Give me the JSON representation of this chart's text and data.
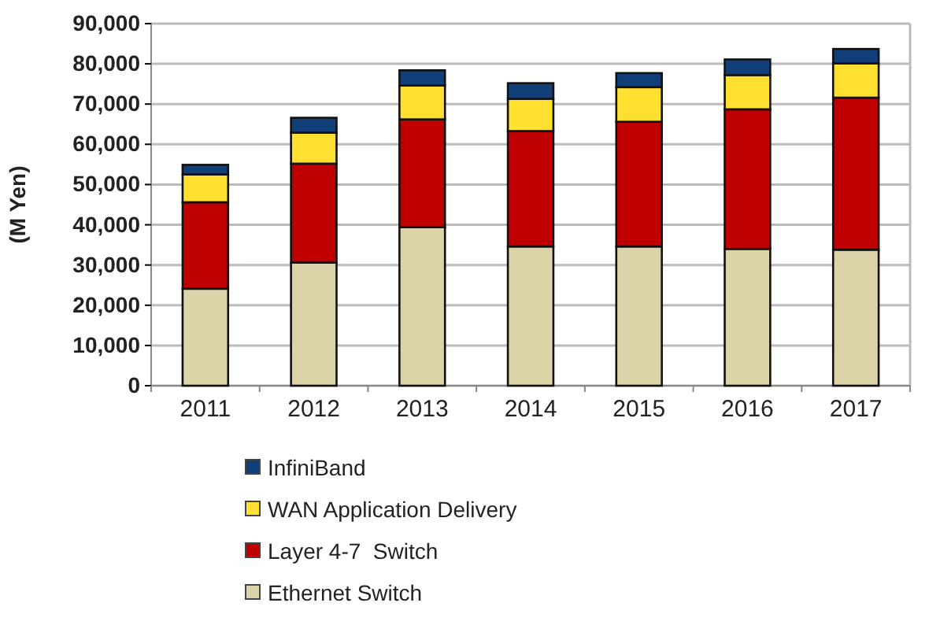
{
  "chart_data": {
    "type": "bar",
    "stacked": true,
    "ylabel": "(M Yen)",
    "categories": [
      "2011",
      "2012",
      "2013",
      "2014",
      "2015",
      "2016",
      "2017"
    ],
    "series": [
      {
        "name": "Ethernet Switch",
        "color": "#ddd3a8",
        "values": [
          24100,
          30600,
          39400,
          34600,
          34600,
          34000,
          33800
        ]
      },
      {
        "name": "Layer 4-7  Switch",
        "color": "#c00000",
        "values": [
          21500,
          24600,
          26800,
          28700,
          31000,
          34700,
          37800
        ]
      },
      {
        "name": "WAN Application Delivery",
        "color": "#ffe030",
        "values": [
          6900,
          7700,
          8400,
          8000,
          8600,
          8500,
          8500
        ]
      },
      {
        "name": "InfiniBand",
        "color": "#103f7a",
        "values": [
          2400,
          3700,
          3800,
          3900,
          3500,
          3900,
          3600
        ]
      }
    ],
    "ylim": [
      0,
      90000
    ],
    "yticks": [
      {
        "value": 0,
        "label": "0"
      },
      {
        "value": 10000,
        "label": "10,000"
      },
      {
        "value": 20000,
        "label": "20,000"
      },
      {
        "value": 30000,
        "label": "30,000"
      },
      {
        "value": 40000,
        "label": "40,000"
      },
      {
        "value": 50000,
        "label": "50,000"
      },
      {
        "value": 60000,
        "label": "60,000"
      },
      {
        "value": 70000,
        "label": "70,000"
      },
      {
        "value": 80000,
        "label": "80,000"
      },
      {
        "value": 90000,
        "label": "90,000"
      }
    ],
    "grid": "y",
    "legend": "bottom"
  }
}
